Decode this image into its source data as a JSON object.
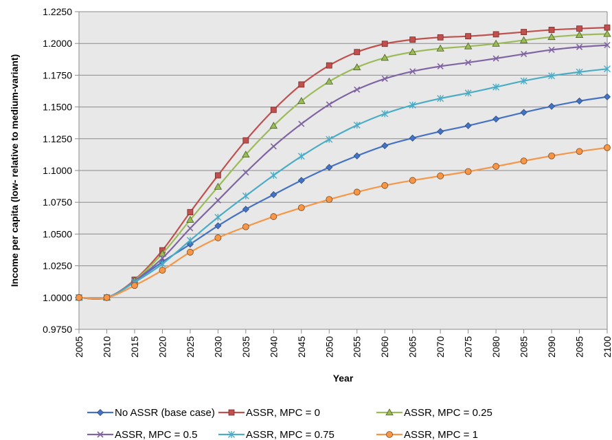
{
  "chart_data": {
    "type": "line",
    "title": "",
    "xlabel": "Year",
    "ylabel": "Income per capita (low- relative to medium-variant)",
    "x": [
      "2005",
      "2010",
      "2015",
      "2020",
      "2025",
      "2030",
      "2035",
      "2040",
      "2045",
      "2050",
      "2055",
      "2060",
      "2065",
      "2070",
      "2075",
      "2080",
      "2085",
      "2090",
      "2095",
      "2100"
    ],
    "ylim": [
      0.975,
      1.225
    ],
    "yticks": [
      "0.9750",
      "1.0000",
      "1.0250",
      "1.0500",
      "1.0750",
      "1.1000",
      "1.1250",
      "1.1500",
      "1.1750",
      "1.2000",
      "1.2250"
    ],
    "grid": true,
    "legend_position": "bottom",
    "series": [
      {
        "name": "No ASSR (base case)",
        "color": "#4472C4",
        "marker": "diamond",
        "values": [
          1.0,
          1.0,
          1.013,
          1.028,
          1.042,
          1.0565,
          1.0695,
          1.081,
          1.0922,
          1.1025,
          1.1115,
          1.1195,
          1.1255,
          1.1307,
          1.1353,
          1.1405,
          1.1457,
          1.1505,
          1.1547,
          1.158
        ]
      },
      {
        "name": "ASSR, MPC = 0",
        "color": "#C0504D",
        "marker": "square",
        "values": [
          1.0,
          1.0,
          1.014,
          1.0372,
          1.0672,
          1.0962,
          1.1237,
          1.1477,
          1.1677,
          1.1827,
          1.1932,
          1.1997,
          1.203,
          1.2048,
          1.2057,
          1.2072,
          1.209,
          1.2107,
          1.2117,
          1.2125
        ]
      },
      {
        "name": "ASSR, MPC = 0.25",
        "color": "#9BBB59",
        "marker": "triangle",
        "values": [
          1.0,
          1.0,
          1.0135,
          1.0345,
          1.0612,
          1.0872,
          1.1125,
          1.1352,
          1.1547,
          1.17,
          1.1812,
          1.1887,
          1.1932,
          1.196,
          1.1977,
          1.1998,
          1.2025,
          1.205,
          1.2067,
          1.2075
        ]
      },
      {
        "name": "ASSR, MPC = 0.5",
        "color": "#8064A2",
        "marker": "x",
        "values": [
          1.0,
          1.0,
          1.013,
          1.031,
          1.0545,
          1.0765,
          1.0985,
          1.119,
          1.1367,
          1.152,
          1.1637,
          1.1722,
          1.178,
          1.182,
          1.185,
          1.1882,
          1.1917,
          1.195,
          1.1972,
          1.1987
        ]
      },
      {
        "name": "ASSR, MPC = 0.75",
        "color": "#4BACC6",
        "marker": "star",
        "values": [
          1.0,
          1.0,
          1.012,
          1.0265,
          1.045,
          1.0632,
          1.08,
          1.0962,
          1.1112,
          1.1245,
          1.1357,
          1.1447,
          1.1515,
          1.1567,
          1.161,
          1.1657,
          1.1705,
          1.1745,
          1.1775,
          1.18
        ]
      },
      {
        "name": "ASSR, MPC = 1",
        "color": "#F79646",
        "marker": "circle",
        "values": [
          1.0,
          1.0,
          1.0095,
          1.0215,
          1.0357,
          1.047,
          1.0557,
          1.0637,
          1.0707,
          1.0772,
          1.083,
          1.0882,
          1.0922,
          1.0957,
          1.0992,
          1.1032,
          1.1075,
          1.1115,
          1.115,
          1.118
        ]
      }
    ]
  }
}
